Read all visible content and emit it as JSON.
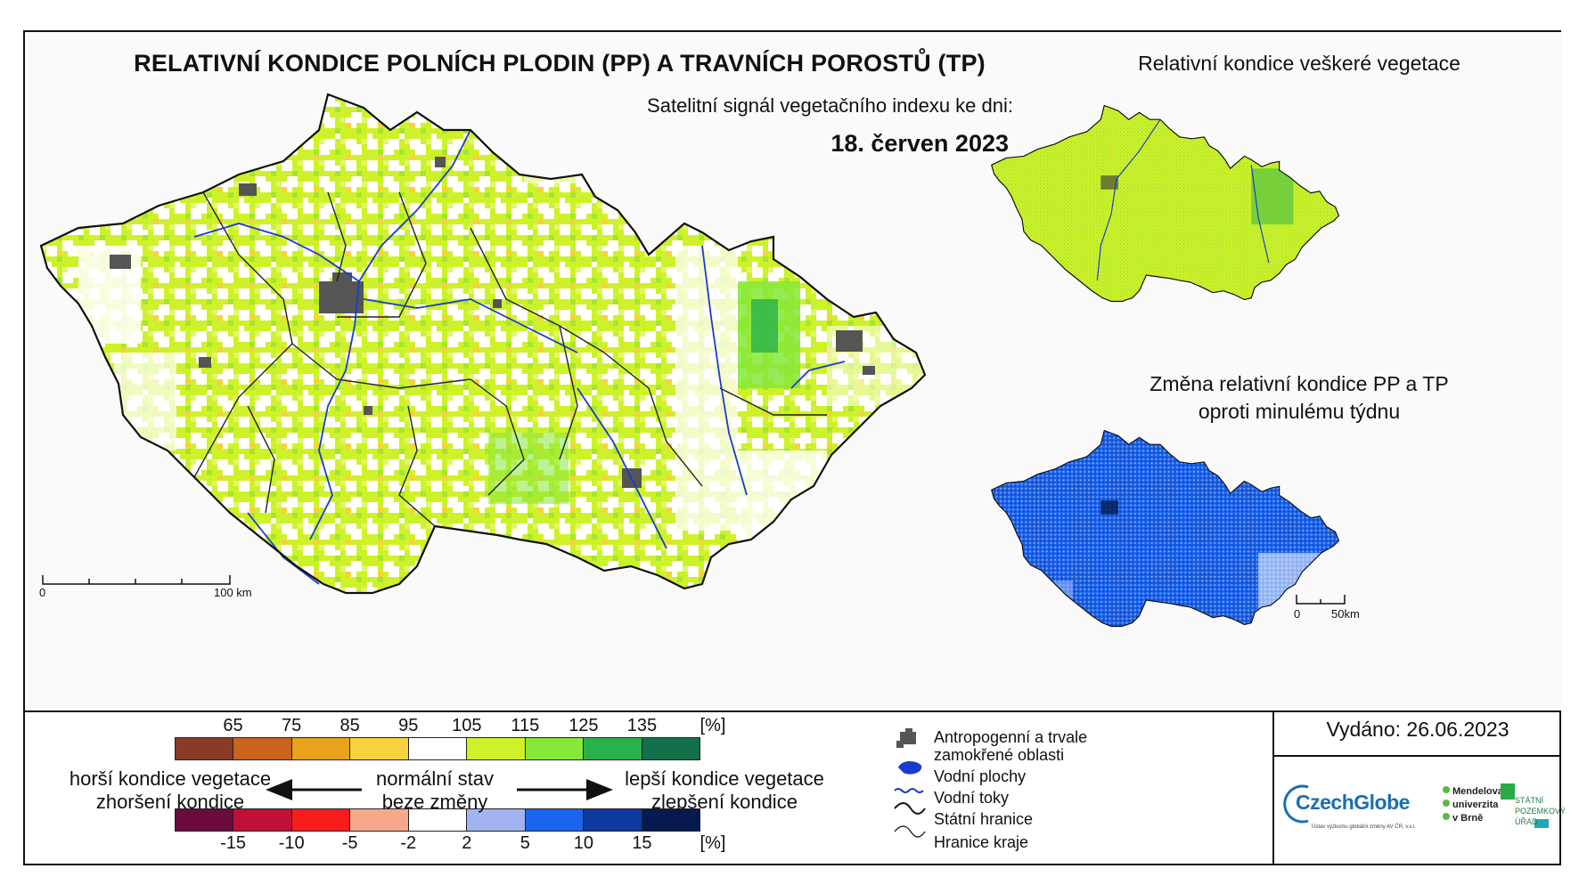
{
  "title": "RELATIVNÍ KONDICE POLNÍCH PLODIN (PP) A TRAVNÍCH POROSTŮ (TP)",
  "subtitle": "Satelitní signál vegetačního indexu ke dni:",
  "date": "18. červen 2023",
  "inset_top": {
    "title": "Relativní kondice veškeré vegetace"
  },
  "inset_bottom": {
    "title_line1": "Změna relativní kondice PP a TP",
    "title_line2": "oproti minulému týdnu"
  },
  "scale_main": {
    "zero": "0",
    "end": "100 km"
  },
  "scale_inset": {
    "zero": "0",
    "end": "50km"
  },
  "legend_condition": {
    "colors": [
      "#8b3a26",
      "#c8641e",
      "#e8a21c",
      "#f8d23c",
      "#ffffff",
      "#cef22a",
      "#86e83a",
      "#29b24a",
      "#12704a"
    ],
    "ticks": [
      "65",
      "75",
      "85",
      "95",
      "105",
      "115",
      "125",
      "135",
      "[%]"
    ]
  },
  "legend_change": {
    "colors": [
      "#6b0a3c",
      "#c01038",
      "#f81c1c",
      "#f8a88a",
      "#ffffff",
      "#a2b4f0",
      "#1a64f0",
      "#0e3aa0",
      "#061a50"
    ],
    "ticks": [
      "-15",
      "-10",
      "-5",
      "-2",
      "2",
      "5",
      "10",
      "15",
      "[%]"
    ]
  },
  "legend_text": {
    "worse_line1": "horší kondice vegetace",
    "worse_line2": "zhoršení kondice",
    "normal_line1": "normální stav",
    "normal_line2": "beze změny",
    "better_line1": "lepší kondice vegetace",
    "better_line2": "zlepšení kondice"
  },
  "symbols": {
    "anthropogenic_line1": "Antropogenní a trvale",
    "anthropogenic_line2": "zamokřené oblasti",
    "water_bodies": "Vodní plochy",
    "rivers": "Vodní toky",
    "state_border": "Státní hranice",
    "region_border": "Hranice kraje"
  },
  "issued": "Vydáno: 26.06.2023",
  "logos": {
    "czechglobe": "CzechGlobe",
    "czechglobe_sub": "Ústav výzkumu globální změny AV ČR, v.v.i.",
    "mendelu_line1": "Mendelova",
    "mendelu_line2": "univerzita",
    "mendelu_line3": "v Brně",
    "spu_line1": "STÁTNÍ",
    "spu_line2": "POZEMKOVÝ",
    "spu_line3": "ÚŘAD"
  },
  "colors": {
    "frame": "#111111",
    "cz_green": "#cef22a",
    "cz_blue": "#1a64f0",
    "river": "#1a3ccc",
    "urban": "#555555"
  }
}
